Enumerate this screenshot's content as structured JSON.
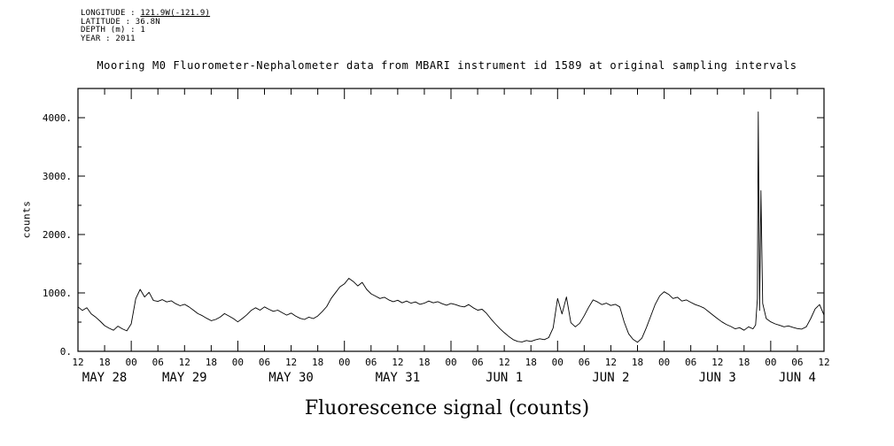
{
  "meta": {
    "longitude_label": "LONGITUDE : ",
    "longitude_value": "121.9W(-121.9)",
    "latitude": "LATITUDE : 36.8N",
    "depth": "DEPTH (m) : 1",
    "year": "YEAR : 2011"
  },
  "title": "Mooring M0 Fluorometer-Nephalometer data from MBARI instrument id 1589 at original sampling intervals",
  "caption": "Fluorescence signal (counts)",
  "chart_data": {
    "type": "line",
    "title": "Mooring M0 Fluorometer-Nephalometer data from MBARI instrument id 1589 at original sampling intervals",
    "xlabel": "Fluorescence signal (counts)",
    "ylabel": "counts",
    "line_color": "#000000",
    "ylim": [
      0,
      4500
    ],
    "yticks": [
      0,
      1000,
      2000,
      3000,
      4000
    ],
    "ytick_labels": [
      "0.",
      "1000.",
      "2000.",
      "3000.",
      "4000."
    ],
    "y_minor_ticks": [
      500,
      1500,
      2500,
      3500
    ],
    "x_range_hours": [
      0,
      168
    ],
    "x_start": "2011 MAY 28 12:00",
    "xtick_interval_hours": 6,
    "xtick_hour_labels": [
      "12",
      "18",
      "00",
      "06",
      "12",
      "18",
      "00",
      "06",
      "12",
      "18",
      "00",
      "06",
      "12",
      "18",
      "00",
      "06",
      "12",
      "18",
      "00",
      "06",
      "12",
      "18",
      "00",
      "06",
      "12",
      "18",
      "00",
      "06",
      "12"
    ],
    "date_labels": [
      {
        "label": "MAY 28",
        "t_hours": 6
      },
      {
        "label": "MAY 29",
        "t_hours": 24
      },
      {
        "label": "MAY 30",
        "t_hours": 48
      },
      {
        "label": "MAY 31",
        "t_hours": 72
      },
      {
        "label": "JUN 1",
        "t_hours": 96
      },
      {
        "label": "JUN 2",
        "t_hours": 120
      },
      {
        "label": "JUN 3",
        "t_hours": 144
      },
      {
        "label": "JUN 4",
        "t_hours": 162
      }
    ],
    "series": [
      {
        "name": "fluorescence_counts",
        "points": [
          [
            0,
            760
          ],
          [
            1,
            700
          ],
          [
            2,
            745
          ],
          [
            3,
            640
          ],
          [
            4,
            585
          ],
          [
            5,
            515
          ],
          [
            6,
            440
          ],
          [
            7,
            395
          ],
          [
            8,
            360
          ],
          [
            9,
            430
          ],
          [
            10,
            385
          ],
          [
            11,
            350
          ],
          [
            12,
            470
          ],
          [
            13,
            900
          ],
          [
            14,
            1060
          ],
          [
            15,
            930
          ],
          [
            16,
            1010
          ],
          [
            17,
            870
          ],
          [
            18,
            855
          ],
          [
            19,
            885
          ],
          [
            20,
            845
          ],
          [
            21,
            865
          ],
          [
            22,
            815
          ],
          [
            23,
            780
          ],
          [
            24,
            805
          ],
          [
            25,
            760
          ],
          [
            26,
            705
          ],
          [
            27,
            645
          ],
          [
            28,
            610
          ],
          [
            29,
            565
          ],
          [
            30,
            525
          ],
          [
            31,
            545
          ],
          [
            32,
            585
          ],
          [
            33,
            645
          ],
          [
            34,
            605
          ],
          [
            35,
            560
          ],
          [
            36,
            505
          ],
          [
            37,
            560
          ],
          [
            38,
            625
          ],
          [
            39,
            700
          ],
          [
            40,
            745
          ],
          [
            41,
            705
          ],
          [
            42,
            760
          ],
          [
            43,
            720
          ],
          [
            44,
            685
          ],
          [
            45,
            705
          ],
          [
            46,
            660
          ],
          [
            47,
            620
          ],
          [
            48,
            655
          ],
          [
            49,
            605
          ],
          [
            50,
            565
          ],
          [
            51,
            545
          ],
          [
            52,
            585
          ],
          [
            53,
            560
          ],
          [
            54,
            605
          ],
          [
            55,
            680
          ],
          [
            56,
            765
          ],
          [
            57,
            905
          ],
          [
            58,
            1005
          ],
          [
            59,
            1105
          ],
          [
            60,
            1155
          ],
          [
            61,
            1250
          ],
          [
            62,
            1195
          ],
          [
            63,
            1120
          ],
          [
            64,
            1180
          ],
          [
            65,
            1060
          ],
          [
            66,
            985
          ],
          [
            67,
            945
          ],
          [
            68,
            905
          ],
          [
            69,
            925
          ],
          [
            70,
            880
          ],
          [
            71,
            850
          ],
          [
            72,
            875
          ],
          [
            73,
            830
          ],
          [
            74,
            860
          ],
          [
            75,
            825
          ],
          [
            76,
            845
          ],
          [
            77,
            805
          ],
          [
            78,
            825
          ],
          [
            79,
            860
          ],
          [
            80,
            830
          ],
          [
            81,
            850
          ],
          [
            82,
            815
          ],
          [
            83,
            790
          ],
          [
            84,
            820
          ],
          [
            85,
            800
          ],
          [
            86,
            775
          ],
          [
            87,
            760
          ],
          [
            88,
            800
          ],
          [
            89,
            745
          ],
          [
            90,
            705
          ],
          [
            91,
            720
          ],
          [
            92,
            650
          ],
          [
            93,
            555
          ],
          [
            94,
            470
          ],
          [
            95,
            390
          ],
          [
            96,
            320
          ],
          [
            97,
            255
          ],
          [
            98,
            200
          ],
          [
            99,
            170
          ],
          [
            100,
            160
          ],
          [
            101,
            185
          ],
          [
            102,
            170
          ],
          [
            103,
            195
          ],
          [
            104,
            215
          ],
          [
            105,
            200
          ],
          [
            106,
            235
          ],
          [
            107,
            400
          ],
          [
            108,
            905
          ],
          [
            109,
            640
          ],
          [
            110,
            930
          ],
          [
            111,
            490
          ],
          [
            112,
            420
          ],
          [
            113,
            480
          ],
          [
            114,
            610
          ],
          [
            115,
            755
          ],
          [
            116,
            880
          ],
          [
            117,
            845
          ],
          [
            118,
            800
          ],
          [
            119,
            825
          ],
          [
            120,
            785
          ],
          [
            121,
            805
          ],
          [
            122,
            760
          ],
          [
            123,
            500
          ],
          [
            124,
            300
          ],
          [
            125,
            205
          ],
          [
            126,
            155
          ],
          [
            127,
            225
          ],
          [
            128,
            405
          ],
          [
            129,
            605
          ],
          [
            130,
            805
          ],
          [
            131,
            950
          ],
          [
            132,
            1020
          ],
          [
            133,
            975
          ],
          [
            134,
            905
          ],
          [
            135,
            925
          ],
          [
            136,
            860
          ],
          [
            137,
            880
          ],
          [
            138,
            840
          ],
          [
            139,
            800
          ],
          [
            140,
            775
          ],
          [
            141,
            740
          ],
          [
            142,
            680
          ],
          [
            143,
            620
          ],
          [
            144,
            560
          ],
          [
            145,
            505
          ],
          [
            146,
            460
          ],
          [
            147,
            425
          ],
          [
            148,
            385
          ],
          [
            149,
            405
          ],
          [
            150,
            360
          ],
          [
            151,
            420
          ],
          [
            152,
            385
          ],
          [
            152.6,
            450
          ],
          [
            153,
            900
          ],
          [
            153.2,
            4100
          ],
          [
            153.5,
            700
          ],
          [
            153.8,
            2750
          ],
          [
            154.2,
            820
          ],
          [
            155,
            560
          ],
          [
            156,
            505
          ],
          [
            157,
            470
          ],
          [
            158,
            445
          ],
          [
            159,
            420
          ],
          [
            160,
            435
          ],
          [
            161,
            410
          ],
          [
            162,
            390
          ],
          [
            163,
            380
          ],
          [
            164,
            420
          ],
          [
            165,
            560
          ],
          [
            166,
            725
          ],
          [
            167,
            800
          ],
          [
            168,
            620
          ]
        ]
      }
    ]
  }
}
